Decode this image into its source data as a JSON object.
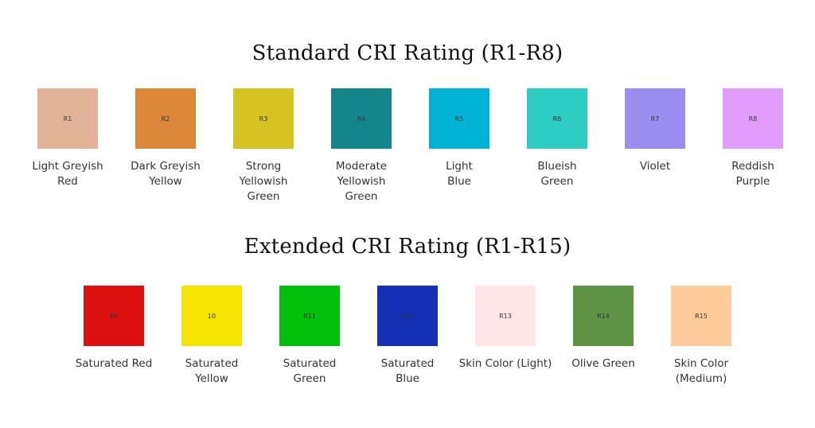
{
  "standard": {
    "title": "Standard CRI Rating (R1-R8)",
    "items": [
      {
        "code": "R1",
        "label": "Light Greyish\nRed",
        "color": "#e2b299"
      },
      {
        "code": "R2",
        "label": "Dark Greyish\nYellow",
        "color": "#db883a"
      },
      {
        "code": "R3",
        "label": "Strong\nYellowish\nGreen",
        "color": "#d6c424"
      },
      {
        "code": "R4",
        "label": "Moderate\nYellowish\nGreen",
        "color": "#14868a"
      },
      {
        "code": "R5",
        "label": "Light\nBlue",
        "color": "#02b2d4"
      },
      {
        "code": "R6",
        "label": "Blueish\nGreen",
        "color": "#2dcdc4"
      },
      {
        "code": "R7",
        "label": "Violet",
        "color": "#9c8df0"
      },
      {
        "code": "R8",
        "label": "Reddish\nPurple",
        "color": "#e29dfb"
      }
    ]
  },
  "extended": {
    "title": "Extended CRI Rating (R1-R15)",
    "items": [
      {
        "code": "R9",
        "label": "Saturated Red",
        "color": "#dd1111"
      },
      {
        "code": "10",
        "label": "Saturated\nYellow",
        "color": "#f5e401"
      },
      {
        "code": "R11",
        "label": "Saturated\nGreen",
        "color": "#02bf0b"
      },
      {
        "code": "R12",
        "label": "Saturated\nBlue",
        "color": "#1430b4"
      },
      {
        "code": "R13",
        "label": "Skin Color (Light)",
        "color": "#fde7e6"
      },
      {
        "code": "R14",
        "label": "Olive Green",
        "color": "#5f9447"
      },
      {
        "code": "R15",
        "label": "Skin Color\n(Medium)",
        "color": "#fdcc9a"
      }
    ]
  }
}
